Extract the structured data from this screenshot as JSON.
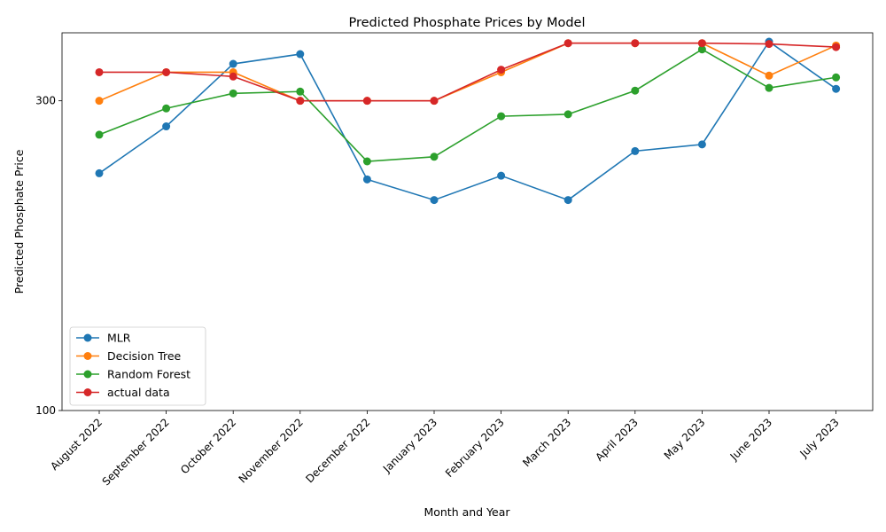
{
  "chart_data": {
    "type": "line",
    "title": "Predicted Phosphate Prices by Model",
    "xlabel": "Month and Year",
    "ylabel": "Predicted Phosphate Price",
    "y_scale": "log",
    "ylim": [
      100,
      370
    ],
    "yticks": [
      100,
      300
    ],
    "grid": false,
    "legend_position": "lower-left",
    "categories": [
      "August 2022",
      "September 2022",
      "October 2022",
      "November 2022",
      "December 2022",
      "January 2023",
      "February 2023",
      "March 2023",
      "April 2023",
      "May 2023",
      "June 2023",
      "July 2023"
    ],
    "series": [
      {
        "name": "MLR",
        "color": "#1f77b4",
        "values": [
          232,
          274,
          342,
          354,
          227,
          211,
          230,
          211,
          251,
          257,
          370,
          313
        ]
      },
      {
        "name": "Decision Tree",
        "color": "#ff7f0e",
        "values": [
          300,
          332,
          332,
          300,
          300,
          300,
          332,
          368,
          368,
          368,
          328,
          365
        ]
      },
      {
        "name": "Random Forest",
        "color": "#2ca02c",
        "values": [
          266,
          292,
          308,
          310,
          242,
          246,
          284,
          286,
          311,
          360,
          314,
          326
        ]
      },
      {
        "name": "actual data",
        "color": "#d62728",
        "values": [
          332,
          332,
          327,
          300,
          300,
          300,
          335,
          368,
          368,
          368,
          367,
          363
        ]
      }
    ]
  }
}
